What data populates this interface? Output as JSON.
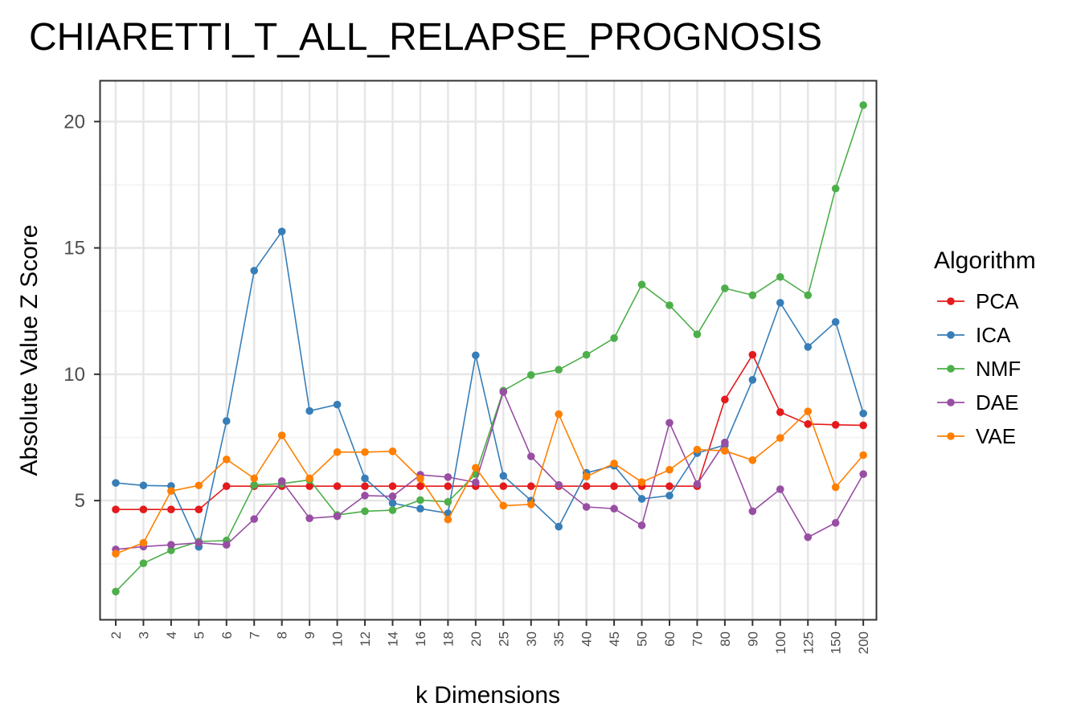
{
  "chart_data": {
    "type": "line",
    "title": "CHIARETTI_T_ALL_RELAPSE_PROGNOSIS",
    "xlabel": "k Dimensions",
    "ylabel": "Absolute Value Z Score",
    "categories": [
      "2",
      "3",
      "4",
      "5",
      "6",
      "7",
      "8",
      "9",
      "10",
      "12",
      "14",
      "16",
      "18",
      "20",
      "25",
      "30",
      "35",
      "40",
      "45",
      "50",
      "60",
      "70",
      "80",
      "90",
      "100",
      "125",
      "150",
      "200"
    ],
    "yticks": [
      5,
      10,
      15,
      20
    ],
    "ylim": [
      0.3,
      21.6
    ],
    "grid": true,
    "legend": {
      "title": "Algorithm",
      "position": "right"
    },
    "series": [
      {
        "name": "PCA",
        "color": "#e41a1c",
        "values": [
          4.65,
          4.65,
          4.65,
          4.65,
          5.57,
          5.57,
          5.57,
          5.57,
          5.57,
          5.57,
          5.57,
          5.57,
          5.57,
          5.57,
          5.57,
          5.57,
          5.57,
          5.57,
          5.57,
          5.57,
          5.57,
          5.57,
          9.0,
          10.77,
          8.5,
          8.03,
          8.0,
          7.98
        ]
      },
      {
        "name": "ICA",
        "color": "#377eb8",
        "values": [
          5.7,
          5.6,
          5.58,
          3.17,
          8.15,
          14.1,
          15.65,
          8.55,
          8.8,
          5.88,
          4.9,
          4.68,
          4.5,
          10.75,
          5.98,
          5.0,
          3.97,
          6.1,
          6.38,
          5.07,
          5.2,
          6.88,
          7.2,
          9.78,
          12.83,
          11.08,
          12.07,
          8.45
        ]
      },
      {
        "name": "NMF",
        "color": "#4daf4a",
        "values": [
          1.4,
          2.52,
          3.03,
          3.38,
          3.42,
          5.62,
          5.67,
          5.82,
          4.43,
          4.58,
          4.62,
          5.02,
          4.95,
          6.05,
          9.35,
          9.97,
          10.18,
          10.77,
          11.43,
          13.55,
          12.73,
          11.58,
          13.4,
          13.13,
          13.85,
          13.13,
          17.35,
          20.65
        ]
      },
      {
        "name": "DAE",
        "color": "#984ea3",
        "values": [
          3.07,
          3.18,
          3.25,
          3.33,
          3.25,
          4.27,
          5.77,
          4.3,
          4.38,
          5.2,
          5.17,
          6.02,
          5.93,
          5.72,
          9.3,
          6.75,
          5.62,
          4.75,
          4.68,
          4.02,
          8.08,
          5.65,
          7.3,
          4.58,
          5.45,
          3.55,
          4.12,
          6.05
        ]
      },
      {
        "name": "VAE",
        "color": "#ff7f00",
        "values": [
          2.9,
          3.33,
          5.38,
          5.6,
          6.63,
          5.88,
          7.58,
          5.88,
          6.92,
          6.92,
          6.95,
          5.87,
          4.25,
          6.3,
          4.8,
          4.85,
          8.42,
          5.95,
          6.47,
          5.73,
          6.22,
          7.02,
          6.97,
          6.6,
          7.48,
          8.53,
          5.53,
          6.8
        ]
      }
    ]
  }
}
